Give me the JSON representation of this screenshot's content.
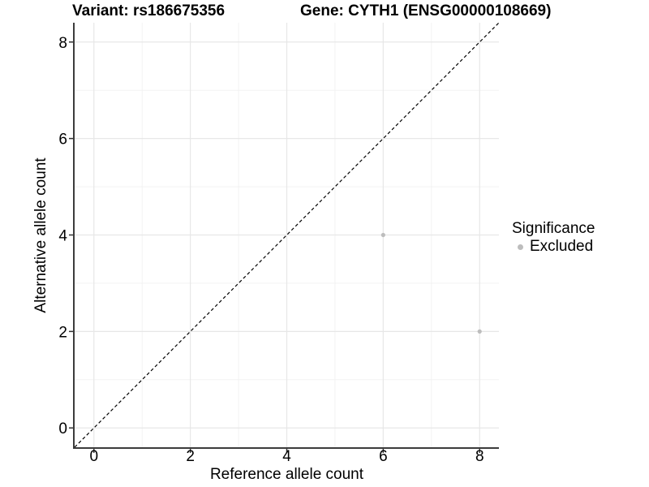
{
  "titles": {
    "variant": "Variant: rs186675356",
    "gene": "Gene: CYTH1 (ENSG00000108669)"
  },
  "legend": {
    "title": "Significance",
    "items": [
      {
        "label": "Excluded",
        "color": "#bdbdbd"
      }
    ]
  },
  "chart_data": {
    "type": "scatter",
    "title": "Variant: rs186675356  |  Gene: CYTH1 (ENSG00000108669)",
    "xlabel": "Reference allele count",
    "ylabel": "Alternative allele count",
    "xlim": [
      -0.4,
      8.4
    ],
    "ylim": [
      -0.4,
      8.4
    ],
    "x_ticks": [
      0,
      2,
      4,
      6,
      8
    ],
    "y_ticks": [
      0,
      2,
      4,
      6,
      8
    ],
    "x_minor_ticks": [
      1,
      3,
      5,
      7
    ],
    "y_minor_ticks": [
      1,
      3,
      5,
      7
    ],
    "grid": true,
    "legend_position": "right",
    "identity_line": {
      "slope": 1,
      "intercept": 0,
      "style": "dashed",
      "color": "#000000"
    },
    "series": [
      {
        "name": "Excluded",
        "color": "#bdbdbd",
        "points": [
          {
            "x": 6,
            "y": 4
          },
          {
            "x": 8,
            "y": 2
          }
        ]
      }
    ],
    "colors": {
      "major_grid": "#e7e7e7",
      "minor_grid": "#f1f1f1",
      "axis_line": "#3c3c3c",
      "tick_mark": "#333333",
      "tick_label": "#000000",
      "point": "#bdbdbd"
    }
  }
}
